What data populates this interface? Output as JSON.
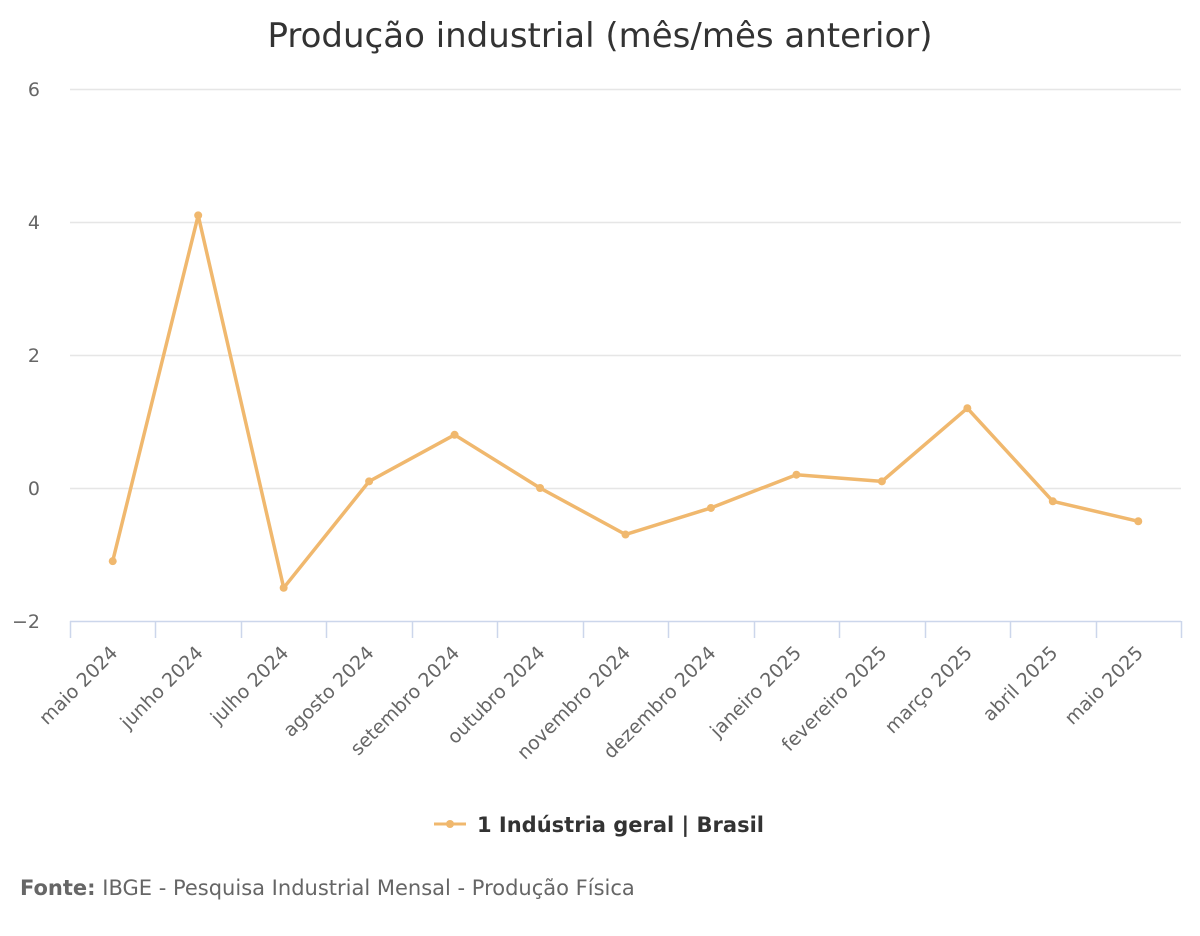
{
  "chart_data": {
    "type": "line",
    "title": "Produção industrial (mês/mês anterior)",
    "categories": [
      "maio 2024",
      "junho 2024",
      "julho 2024",
      "agosto 2024",
      "setembro 2024",
      "outubro 2024",
      "novembro 2024",
      "dezembro 2024",
      "janeiro 2025",
      "fevereiro 2025",
      "março 2025",
      "abril 2025",
      "maio 2025"
    ],
    "series": [
      {
        "name": "1 Indústria geral | Brasil",
        "color": "#f0b86e",
        "values": [
          -1.1,
          4.1,
          -1.5,
          0.1,
          0.8,
          0.0,
          -0.7,
          -0.3,
          0.2,
          0.1,
          1.2,
          -0.2,
          -0.5
        ]
      }
    ],
    "ylim": [
      -2,
      6
    ],
    "yticks": [
      -2,
      0,
      2,
      4,
      6
    ],
    "ytick_labels": [
      "−2",
      "0",
      "2",
      "4",
      "6"
    ],
    "xlabel": "",
    "ylabel": "",
    "grid": true,
    "legend_position": "bottom-center"
  },
  "source": {
    "prefix": "Fonte:",
    "text": "IBGE - Pesquisa Industrial Mensal - Produção Física"
  },
  "colors": {
    "grid": "#e6e6e6",
    "axis": "#ccd6eb",
    "text": "#333333",
    "muted_text": "#666666"
  }
}
